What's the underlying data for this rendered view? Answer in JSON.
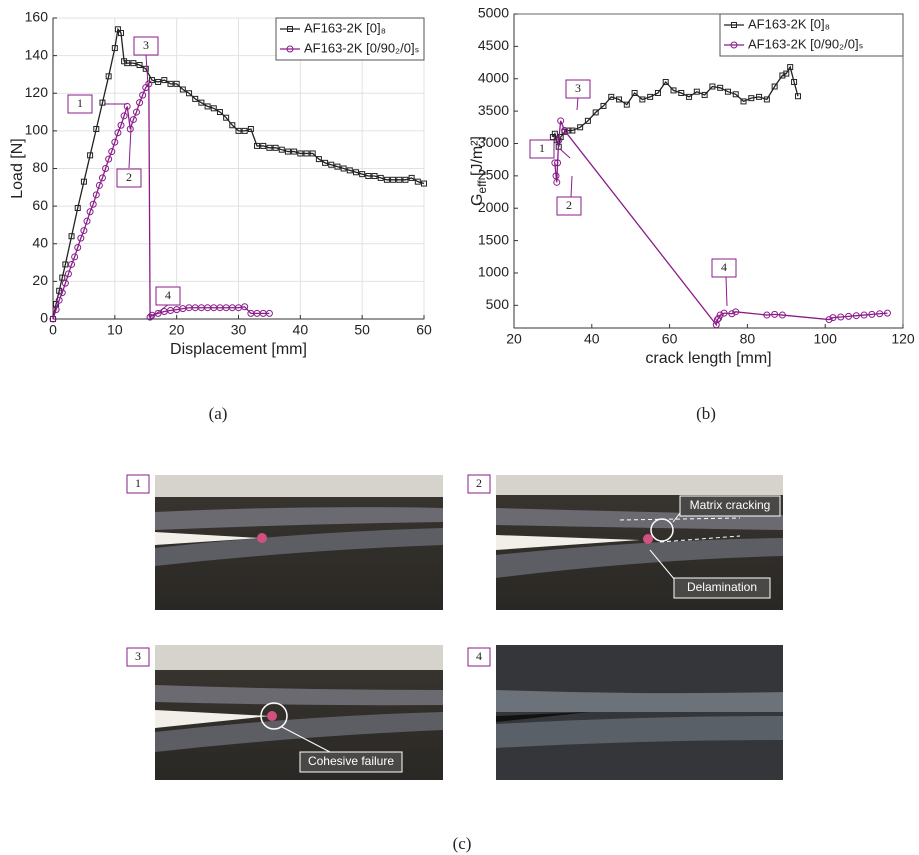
{
  "chart_data": [
    {
      "type": "line",
      "xlabel": "Displacement [mm]",
      "ylabel": "Load [N]",
      "xlim": [
        0,
        60
      ],
      "xticks": [
        0,
        10,
        20,
        30,
        40,
        50,
        60
      ],
      "ylim": [
        0,
        160
      ],
      "yticks": [
        0,
        20,
        40,
        60,
        80,
        100,
        120,
        140,
        160
      ],
      "grid": true,
      "legend": "upper right",
      "annotations": [
        "1",
        "2",
        "3",
        "4"
      ],
      "series": [
        {
          "name": "AF163-2K [0]₈",
          "color": "#222222",
          "marker": "square",
          "x": [
            0,
            0.5,
            1,
            1.5,
            2,
            3,
            4,
            5,
            6,
            7,
            8,
            9,
            10,
            10.5,
            11,
            11.5,
            12,
            13,
            14,
            15,
            16,
            17,
            18,
            19,
            20,
            21,
            22,
            23,
            24,
            25,
            26,
            27,
            28,
            29,
            30,
            31,
            32,
            33,
            34,
            35,
            36,
            37,
            38,
            39,
            40,
            41,
            42,
            43,
            44,
            45,
            46,
            47,
            48,
            49,
            50,
            51,
            52,
            53,
            54,
            55,
            56,
            57,
            58,
            59,
            60
          ],
          "values": [
            0,
            8,
            15,
            22,
            29,
            44,
            59,
            73,
            87,
            101,
            115,
            129,
            144,
            154,
            152,
            137,
            136,
            136,
            135,
            133,
            127,
            126,
            127,
            125,
            125,
            122,
            120,
            117,
            115,
            113,
            112,
            110,
            107,
            103,
            100,
            100,
            101,
            92,
            92,
            91,
            91,
            90,
            89,
            89,
            88,
            88,
            88,
            85,
            83,
            82,
            81,
            80,
            79,
            78,
            77,
            76,
            76,
            75,
            74,
            74,
            74,
            74,
            75,
            73,
            72
          ]
        },
        {
          "name": "AF163-2K [0/90₂/0]ₛ",
          "color": "#8a1c8a",
          "marker": "circle",
          "x": [
            0,
            0.5,
            1,
            1.5,
            2,
            2.5,
            3,
            3.5,
            4,
            4.5,
            5,
            5.5,
            6,
            6.5,
            7,
            7.5,
            8,
            8.5,
            9,
            9.5,
            10,
            10.5,
            11,
            11.5,
            12,
            12.5,
            13,
            13.5,
            14,
            14.5,
            15,
            15.5,
            15.7,
            16,
            17,
            18,
            19,
            20,
            21,
            22,
            23,
            24,
            25,
            26,
            27,
            28,
            29,
            30,
            31,
            32,
            33,
            34,
            35
          ],
          "values": [
            0,
            5,
            10,
            14,
            19,
            24,
            29,
            33,
            38,
            43,
            47,
            52,
            57,
            61,
            66,
            71,
            75,
            80,
            85,
            89,
            94,
            99,
            103,
            108,
            113,
            101,
            106,
            110,
            115,
            119,
            123,
            125,
            1,
            2,
            3,
            4,
            4.5,
            5,
            5.5,
            6,
            6,
            6,
            6,
            6,
            6,
            6,
            6,
            6,
            6.5,
            3,
            3,
            3,
            3
          ]
        }
      ]
    },
    {
      "type": "line",
      "xlabel": "crack length [mm]",
      "ylabel": {
        "symbol": "G",
        "subscript": "eff",
        "unit": " [J/m²]"
      },
      "xlim": [
        20,
        120
      ],
      "xticks": [
        20,
        40,
        60,
        80,
        100,
        120
      ],
      "ylim": [
        150,
        5000
      ],
      "yticks": [
        500,
        1000,
        1500,
        2000,
        2500,
        3000,
        3500,
        4000,
        4500,
        5000
      ],
      "grid": false,
      "legend": "upper right",
      "annotations": [
        "1",
        "2",
        "3",
        "4"
      ],
      "series": [
        {
          "name": "AF163-2K [0]₈",
          "color": "#222222",
          "marker": "square",
          "x": [
            30,
            30.5,
            31,
            31.5,
            32,
            33,
            34,
            35,
            37,
            39,
            41,
            43,
            45,
            47,
            49,
            51,
            53,
            55,
            57,
            59,
            61,
            63,
            65,
            67,
            69,
            71,
            73,
            75,
            77,
            79,
            81,
            83,
            85,
            87,
            89,
            90,
            91,
            92,
            93
          ],
          "values": [
            3100,
            3150,
            3050,
            2950,
            3100,
            3180,
            3200,
            3200,
            3250,
            3350,
            3480,
            3580,
            3720,
            3680,
            3600,
            3780,
            3680,
            3720,
            3780,
            3950,
            3820,
            3780,
            3720,
            3800,
            3750,
            3880,
            3860,
            3800,
            3760,
            3650,
            3700,
            3720,
            3680,
            3880,
            4050,
            4080,
            4180,
            3950,
            3730
          ]
        },
        {
          "name": "AF163-2K [0/90₂/0]ₛ",
          "color": "#8a1c8a",
          "marker": "circle",
          "x": [
            30.5,
            30.8,
            31,
            31.2,
            31.5,
            32,
            33,
            72,
            72.3,
            72.6,
            73,
            74,
            76,
            77,
            85,
            87,
            89,
            101,
            102,
            104,
            106,
            108,
            110,
            112,
            114,
            116
          ],
          "values": [
            2700,
            2500,
            2400,
            2700,
            3050,
            3350,
            3200,
            200,
            280,
            300,
            350,
            380,
            370,
            400,
            350,
            360,
            350,
            280,
            310,
            320,
            330,
            340,
            350,
            360,
            370,
            380
          ]
        }
      ]
    }
  ],
  "captions": [
    "(a)",
    "(b)",
    "(c)"
  ],
  "photos": [
    {
      "label": "1"
    },
    {
      "label": "2",
      "callouts": [
        "Matrix cracking",
        "Delamination"
      ]
    },
    {
      "label": "3",
      "callouts": [
        "Cohesive failure"
      ]
    },
    {
      "label": "4"
    }
  ]
}
